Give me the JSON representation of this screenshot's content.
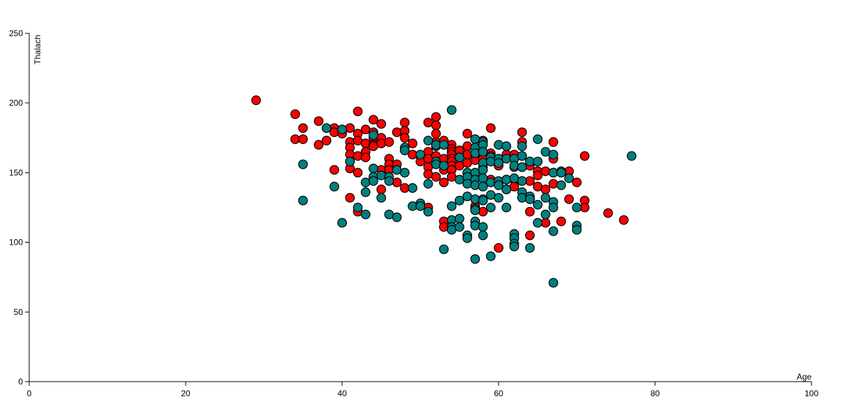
{
  "chart_data": {
    "type": "scatter",
    "title": "",
    "xlabel": "Age",
    "ylabel": "Thalach",
    "xlim": [
      0,
      100
    ],
    "ylim": [
      0,
      250
    ],
    "xticks": [
      "0",
      "20",
      "40",
      "60",
      "80",
      "100"
    ],
    "yticks": [
      "0",
      "50",
      "100",
      "150",
      "200",
      "250"
    ],
    "grid": false,
    "legend": "none",
    "series": [
      {
        "color": "#ff0000",
        "points": [
          [
            29,
            202
          ],
          [
            34,
            192
          ],
          [
            34,
            174
          ],
          [
            35,
            182
          ],
          [
            35,
            174
          ],
          [
            37,
            187
          ],
          [
            37,
            170
          ],
          [
            38,
            173
          ],
          [
            39,
            182
          ],
          [
            39,
            179
          ],
          [
            39,
            152
          ],
          [
            40,
            181
          ],
          [
            40,
            178
          ],
          [
            41,
            182
          ],
          [
            41,
            172
          ],
          [
            41,
            168
          ],
          [
            41,
            163
          ],
          [
            41,
            158
          ],
          [
            41,
            153
          ],
          [
            41,
            132
          ],
          [
            42,
            194
          ],
          [
            42,
            178
          ],
          [
            42,
            173
          ],
          [
            42,
            162
          ],
          [
            42,
            150
          ],
          [
            42,
            122
          ],
          [
            43,
            181
          ],
          [
            43,
            171
          ],
          [
            43,
            165
          ],
          [
            43,
            161
          ],
          [
            44,
            188
          ],
          [
            44,
            179
          ],
          [
            44,
            175
          ],
          [
            44,
            170
          ],
          [
            44,
            169
          ],
          [
            45,
            185
          ],
          [
            45,
            175
          ],
          [
            45,
            171
          ],
          [
            45,
            152
          ],
          [
            45,
            138
          ],
          [
            46,
            172
          ],
          [
            46,
            160
          ],
          [
            46,
            156
          ],
          [
            46,
            152
          ],
          [
            47,
            179
          ],
          [
            47,
            156
          ],
          [
            47,
            143
          ],
          [
            48,
            186
          ],
          [
            48,
            180
          ],
          [
            48,
            175
          ],
          [
            48,
            139
          ],
          [
            49,
            171
          ],
          [
            49,
            163
          ],
          [
            50,
            162
          ],
          [
            50,
            158
          ],
          [
            51,
            186
          ],
          [
            51,
            165
          ],
          [
            51,
            160
          ],
          [
            51,
            154
          ],
          [
            51,
            149
          ],
          [
            51,
            125
          ],
          [
            52,
            190
          ],
          [
            52,
            184
          ],
          [
            52,
            178
          ],
          [
            52,
            172
          ],
          [
            52,
            169
          ],
          [
            52,
            162
          ],
          [
            52,
            158
          ],
          [
            52,
            147
          ],
          [
            53,
            173
          ],
          [
            53,
            160
          ],
          [
            53,
            152
          ],
          [
            53,
            143
          ],
          [
            53,
            115
          ],
          [
            53,
            111
          ],
          [
            54,
            170
          ],
          [
            54,
            167
          ],
          [
            54,
            165
          ],
          [
            54,
            163
          ],
          [
            54,
            160
          ],
          [
            54,
            158
          ],
          [
            54,
            155
          ],
          [
            54,
            152
          ],
          [
            54,
            147
          ],
          [
            55,
            166
          ],
          [
            55,
            161
          ],
          [
            55,
            155
          ],
          [
            56,
            178
          ],
          [
            56,
            169
          ],
          [
            56,
            163
          ],
          [
            56,
            157
          ],
          [
            56,
            150
          ],
          [
            57,
            174
          ],
          [
            57,
            164
          ],
          [
            57,
            162
          ],
          [
            57,
            159
          ],
          [
            57,
            145
          ],
          [
            57,
            126
          ],
          [
            58,
            173
          ],
          [
            58,
            165
          ],
          [
            58,
            160
          ],
          [
            58,
            154
          ],
          [
            58,
            122
          ],
          [
            59,
            182
          ],
          [
            59,
            164
          ],
          [
            59,
            162
          ],
          [
            59,
            158
          ],
          [
            59,
            145
          ],
          [
            60,
            160
          ],
          [
            60,
            157
          ],
          [
            60,
            155
          ],
          [
            60,
            142
          ],
          [
            60,
            96
          ],
          [
            61,
            163
          ],
          [
            61,
            145
          ],
          [
            61,
            138
          ],
          [
            62,
            163
          ],
          [
            62,
            160
          ],
          [
            62,
            154
          ],
          [
            62,
            145
          ],
          [
            62,
            140
          ],
          [
            63,
            179
          ],
          [
            63,
            172
          ],
          [
            63,
            162
          ],
          [
            63,
            154
          ],
          [
            63,
            144
          ],
          [
            64,
            158
          ],
          [
            64,
            155
          ],
          [
            64,
            144
          ],
          [
            64,
            131
          ],
          [
            64,
            122
          ],
          [
            64,
            105
          ],
          [
            65,
            151
          ],
          [
            65,
            148
          ],
          [
            65,
            140
          ],
          [
            66,
            151
          ],
          [
            66,
            138
          ],
          [
            66,
            114
          ],
          [
            67,
            172
          ],
          [
            67,
            160
          ],
          [
            67,
            150
          ],
          [
            67,
            142
          ],
          [
            68,
            115
          ],
          [
            69,
            151
          ],
          [
            69,
            131
          ],
          [
            70,
            143
          ],
          [
            71,
            162
          ],
          [
            71,
            130
          ],
          [
            71,
            125
          ],
          [
            74,
            121
          ],
          [
            76,
            116
          ]
        ]
      },
      {
        "color": "#008080",
        "points": [
          [
            35,
            156
          ],
          [
            35,
            130
          ],
          [
            38,
            182
          ],
          [
            39,
            140
          ],
          [
            40,
            181
          ],
          [
            40,
            114
          ],
          [
            41,
            158
          ],
          [
            42,
            125
          ],
          [
            43,
            143
          ],
          [
            43,
            136
          ],
          [
            43,
            120
          ],
          [
            44,
            177
          ],
          [
            44,
            153
          ],
          [
            44,
            147
          ],
          [
            44,
            144
          ],
          [
            45,
            148
          ],
          [
            45,
            132
          ],
          [
            46,
            147
          ],
          [
            46,
            144
          ],
          [
            46,
            120
          ],
          [
            47,
            152
          ],
          [
            47,
            118
          ],
          [
            48,
            168
          ],
          [
            48,
            166
          ],
          [
            48,
            150
          ],
          [
            49,
            139
          ],
          [
            49,
            126
          ],
          [
            50,
            163
          ],
          [
            50,
            128
          ],
          [
            50,
            126
          ],
          [
            51,
            173
          ],
          [
            51,
            142
          ],
          [
            51,
            122
          ],
          [
            52,
            170
          ],
          [
            52,
            158
          ],
          [
            52,
            156
          ],
          [
            53,
            170
          ],
          [
            53,
            155
          ],
          [
            53,
            95
          ],
          [
            54,
            195
          ],
          [
            54,
            126
          ],
          [
            54,
            116
          ],
          [
            54,
            111
          ],
          [
            54,
            109
          ],
          [
            55,
            161
          ],
          [
            55,
            145
          ],
          [
            55,
            130
          ],
          [
            55,
            117
          ],
          [
            55,
            111
          ],
          [
            56,
            150
          ],
          [
            56,
            147
          ],
          [
            56,
            142
          ],
          [
            56,
            133
          ],
          [
            56,
            105
          ],
          [
            56,
            103
          ],
          [
            57,
            174
          ],
          [
            57,
            168
          ],
          [
            57,
            164
          ],
          [
            57,
            150
          ],
          [
            57,
            145
          ],
          [
            57,
            141
          ],
          [
            57,
            131
          ],
          [
            57,
            124
          ],
          [
            57,
            123
          ],
          [
            57,
            115
          ],
          [
            57,
            112
          ],
          [
            57,
            88
          ],
          [
            58,
            172
          ],
          [
            58,
            170
          ],
          [
            58,
            165
          ],
          [
            58,
            157
          ],
          [
            58,
            152
          ],
          [
            58,
            146
          ],
          [
            58,
            140
          ],
          [
            58,
            131
          ],
          [
            58,
            130
          ],
          [
            58,
            111
          ],
          [
            58,
            105
          ],
          [
            59,
            161
          ],
          [
            59,
            158
          ],
          [
            59,
            143
          ],
          [
            59,
            134
          ],
          [
            59,
            125
          ],
          [
            59,
            90
          ],
          [
            60,
            170
          ],
          [
            60,
            160
          ],
          [
            60,
            157
          ],
          [
            60,
            144
          ],
          [
            60,
            141
          ],
          [
            60,
            132
          ],
          [
            61,
            169
          ],
          [
            61,
            160
          ],
          [
            61,
            145
          ],
          [
            61,
            138
          ],
          [
            61,
            125
          ],
          [
            62,
            160
          ],
          [
            62,
            155
          ],
          [
            62,
            146
          ],
          [
            62,
            106
          ],
          [
            62,
            103
          ],
          [
            62,
            99
          ],
          [
            62,
            97
          ],
          [
            63,
            169
          ],
          [
            63,
            162
          ],
          [
            63,
            154
          ],
          [
            63,
            144
          ],
          [
            63,
            136
          ],
          [
            63,
            132
          ],
          [
            64,
            158
          ],
          [
            64,
            133
          ],
          [
            64,
            131
          ],
          [
            64,
            96
          ],
          [
            65,
            174
          ],
          [
            65,
            158
          ],
          [
            65,
            127
          ],
          [
            65,
            114
          ],
          [
            66,
            165
          ],
          [
            66,
            132
          ],
          [
            66,
            120
          ],
          [
            67,
            163
          ],
          [
            67,
            150
          ],
          [
            67,
            129
          ],
          [
            67,
            125
          ],
          [
            67,
            108
          ],
          [
            67,
            71
          ],
          [
            68,
            151
          ],
          [
            68,
            150
          ],
          [
            68,
            141
          ],
          [
            69,
            146
          ],
          [
            70,
            125
          ],
          [
            70,
            112
          ],
          [
            70,
            109
          ],
          [
            77,
            162
          ]
        ]
      }
    ]
  }
}
